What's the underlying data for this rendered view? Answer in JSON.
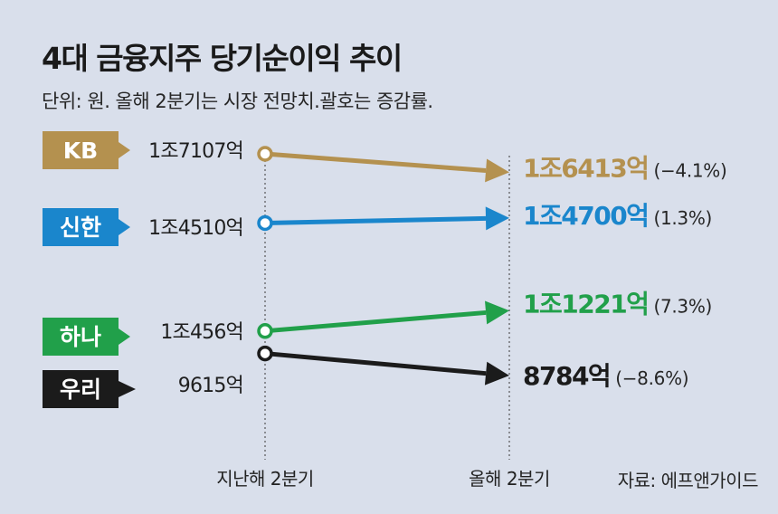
{
  "title": "4대 금융지주 당기순이익 추이",
  "subtitle": "단위: 원. 올해 2분기는 시장 전망치.괄호는 증감률.",
  "source": "자료: 에프앤가이드",
  "chart_data": {
    "type": "line",
    "x": [
      "지난해 2분기",
      "올해 2분기"
    ],
    "xlabel": "",
    "ylabel": "",
    "series": [
      {
        "name": "KB",
        "values": [
          17107,
          16413
        ],
        "start_label": "1조7107억",
        "end_label": "1조6413억",
        "change": "(−4.1%)",
        "color": "#b4914f"
      },
      {
        "name": "신한",
        "values": [
          14510,
          14700
        ],
        "start_label": "1조4510억",
        "end_label": "1조4700억",
        "change": "(1.3%)",
        "color": "#1a86cc"
      },
      {
        "name": "하나",
        "values": [
          10456,
          11221
        ],
        "start_label": "1조456억",
        "end_label": "1조1221억",
        "change": "(7.3%)",
        "color": "#21a04a"
      },
      {
        "name": "우리",
        "values": [
          9615,
          8784
        ],
        "start_label": "9615억",
        "end_label": "8784억",
        "change": "(−8.6%)",
        "color": "#1b1b1b"
      }
    ]
  }
}
